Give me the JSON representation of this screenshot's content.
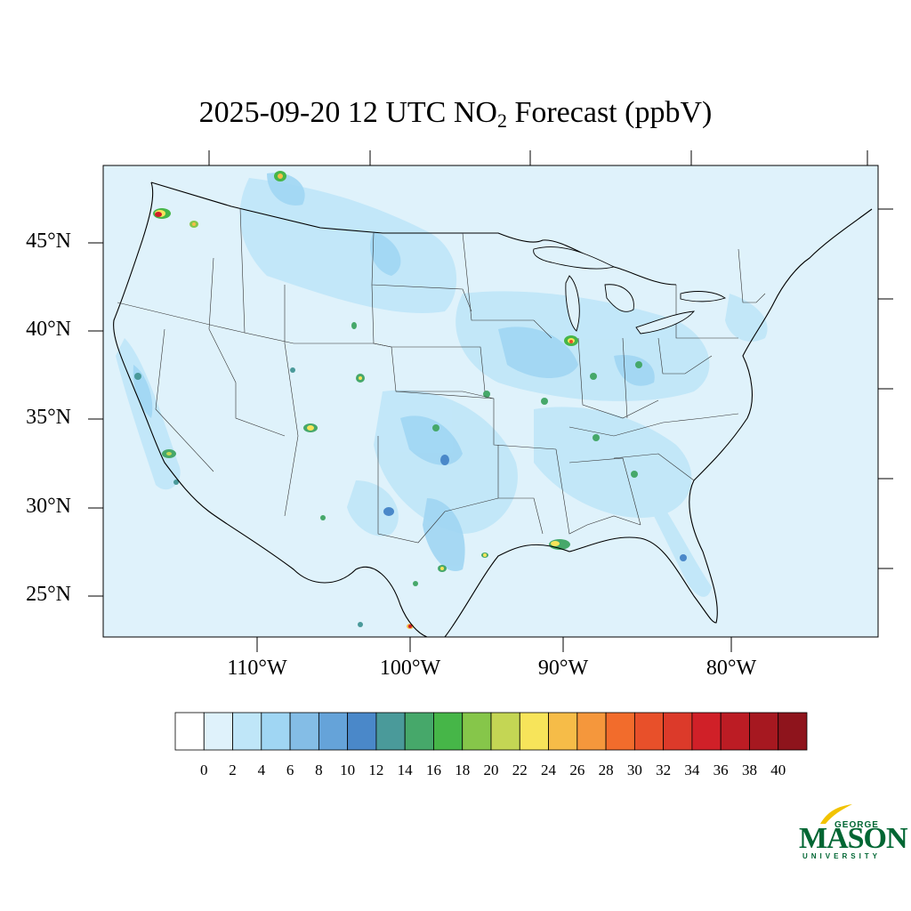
{
  "title": {
    "prefix": "2025-09-20 12 UTC NO",
    "subscript": "2",
    "suffix": " Forecast (ppbV)"
  },
  "map": {
    "region": "Contiguous United States",
    "background_color": "#dff2fb",
    "lat_labels": [
      "45°N",
      "40°N",
      "35°N",
      "30°N",
      "25°N"
    ],
    "lon_labels": [
      "110°W",
      "100°W",
      "90°W",
      "80°W"
    ]
  },
  "colorbar": {
    "colors": [
      "#ffffff",
      "#dff2fb",
      "#bfe6f8",
      "#a0d6f3",
      "#84bde6",
      "#65a3d9",
      "#4a88c9",
      "#4a9a9a",
      "#46a86a",
      "#46b648",
      "#86c64a",
      "#c4d654",
      "#f7e45a",
      "#f6bc48",
      "#f5973c",
      "#f26c2c",
      "#e8502a",
      "#dc3a2a",
      "#d02028",
      "#bc1c24",
      "#a61820",
      "#8e141c"
    ],
    "labels": [
      "0",
      "2",
      "4",
      "6",
      "8",
      "10",
      "12",
      "14",
      "16",
      "18",
      "20",
      "22",
      "24",
      "26",
      "28",
      "30",
      "32",
      "34",
      "36",
      "38",
      "40"
    ]
  },
  "logo": {
    "line1": "GEORGE",
    "line2": "MASON",
    "line3": "UNIVERSITY",
    "color": "#006633",
    "accent": "#f2c300"
  }
}
